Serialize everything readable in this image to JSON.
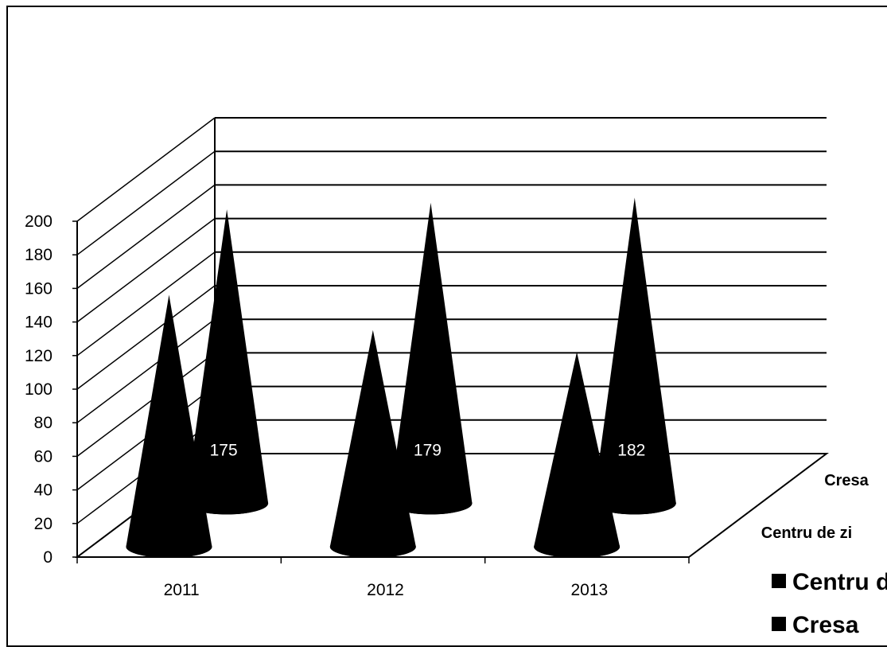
{
  "chart_data": {
    "type": "bar",
    "style": "3d-cone",
    "categories": [
      "2011",
      "2012",
      "2013"
    ],
    "series": [
      {
        "name": "Centru de zi",
        "values": [
          150,
          129,
          116
        ],
        "data_labels": [
          "",
          "",
          ""
        ]
      },
      {
        "name": "Cresa",
        "values": [
          175,
          179,
          182
        ],
        "data_labels": [
          "175",
          "179",
          "182"
        ]
      }
    ],
    "depth_labels": [
      "Cresa",
      "Centru de zi"
    ],
    "legend": {
      "items": [
        "Centru de zi",
        "Cresa"
      ],
      "position": "bottom-right"
    },
    "y_ticks": [
      "0",
      "20",
      "40",
      "60",
      "80",
      "100",
      "120",
      "140",
      "160",
      "180",
      "200"
    ],
    "ylim": [
      0,
      200
    ],
    "title": "",
    "xlabel": "",
    "ylabel": "",
    "grid": true,
    "colors": {
      "bars": "#000000",
      "grid": "#000000",
      "background": "#ffffff",
      "label_text": "#ffffff"
    }
  }
}
